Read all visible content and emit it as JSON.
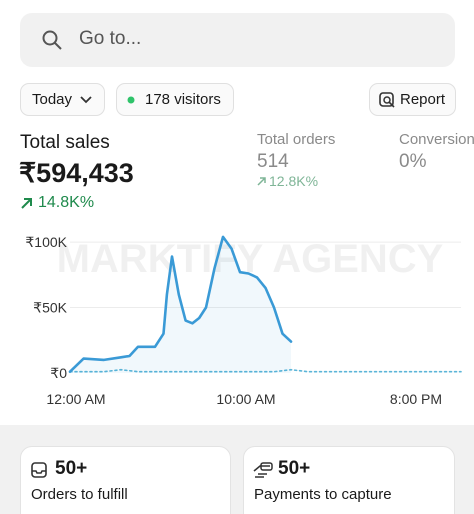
{
  "search": {
    "placeholder": "Go to..."
  },
  "filters": {
    "date": "Today",
    "visitors": "178 visitors",
    "report": "Report"
  },
  "metrics": [
    {
      "label": "Total sales",
      "value": "₹594,433",
      "change": "14.8K%"
    },
    {
      "label": "Total orders",
      "value": "514",
      "change": "12.8K%"
    },
    {
      "label": "Conversion",
      "value": "0%"
    }
  ],
  "watermark": "MARKTIFY AGENCY",
  "chart_data": {
    "type": "line",
    "xlim": [
      0,
      23
    ],
    "ylim": [
      0,
      110000
    ],
    "xticks": [
      {
        "value": 0,
        "label": "12:00 AM"
      },
      {
        "value": 10,
        "label": "10:00 AM"
      },
      {
        "value": 20,
        "label": "8:00 PM"
      }
    ],
    "yticks": [
      {
        "value": 0,
        "label": "₹0"
      },
      {
        "value": 50000,
        "label": "₹50K"
      },
      {
        "value": 100000,
        "label": "₹100K"
      }
    ],
    "grid": true,
    "series": [
      {
        "color": "#3a9ad6",
        "dashed": false,
        "x": [
          0,
          0.8,
          2,
          3,
          3.5,
          4,
          4.5,
          5,
          5.5,
          5.7,
          6,
          6.4,
          6.8,
          7.2,
          7.6,
          8,
          8.5,
          9,
          9.5,
          10,
          10.5,
          11,
          11.5,
          12,
          12.5,
          13
        ],
        "values": [
          1000,
          11000,
          10000,
          12000,
          13000,
          20000,
          20000,
          20000,
          30000,
          60000,
          89000,
          60000,
          40000,
          38000,
          42000,
          50000,
          80000,
          104000,
          95000,
          77000,
          76000,
          73000,
          65000,
          50000,
          30000,
          24000
        ]
      },
      {
        "color": "#5bb5d8",
        "dashed": true,
        "x": [
          0,
          1,
          2,
          3,
          4,
          5,
          6,
          7,
          8,
          9,
          10,
          11,
          12,
          13,
          14,
          15,
          16,
          17,
          18,
          19,
          20,
          21,
          22,
          23
        ],
        "values": [
          1000,
          1000,
          1000,
          2500,
          1000,
          1000,
          1000,
          1000,
          1000,
          1000,
          1000,
          1000,
          1000,
          2500,
          1000,
          1000,
          1000,
          1000,
          1000,
          1000,
          1000,
          1000,
          1000,
          1000
        ]
      }
    ]
  },
  "cards": [
    {
      "count": "50+",
      "label": "Orders to fulfill"
    },
    {
      "count": "50+",
      "label": "Payments to capture"
    }
  ]
}
